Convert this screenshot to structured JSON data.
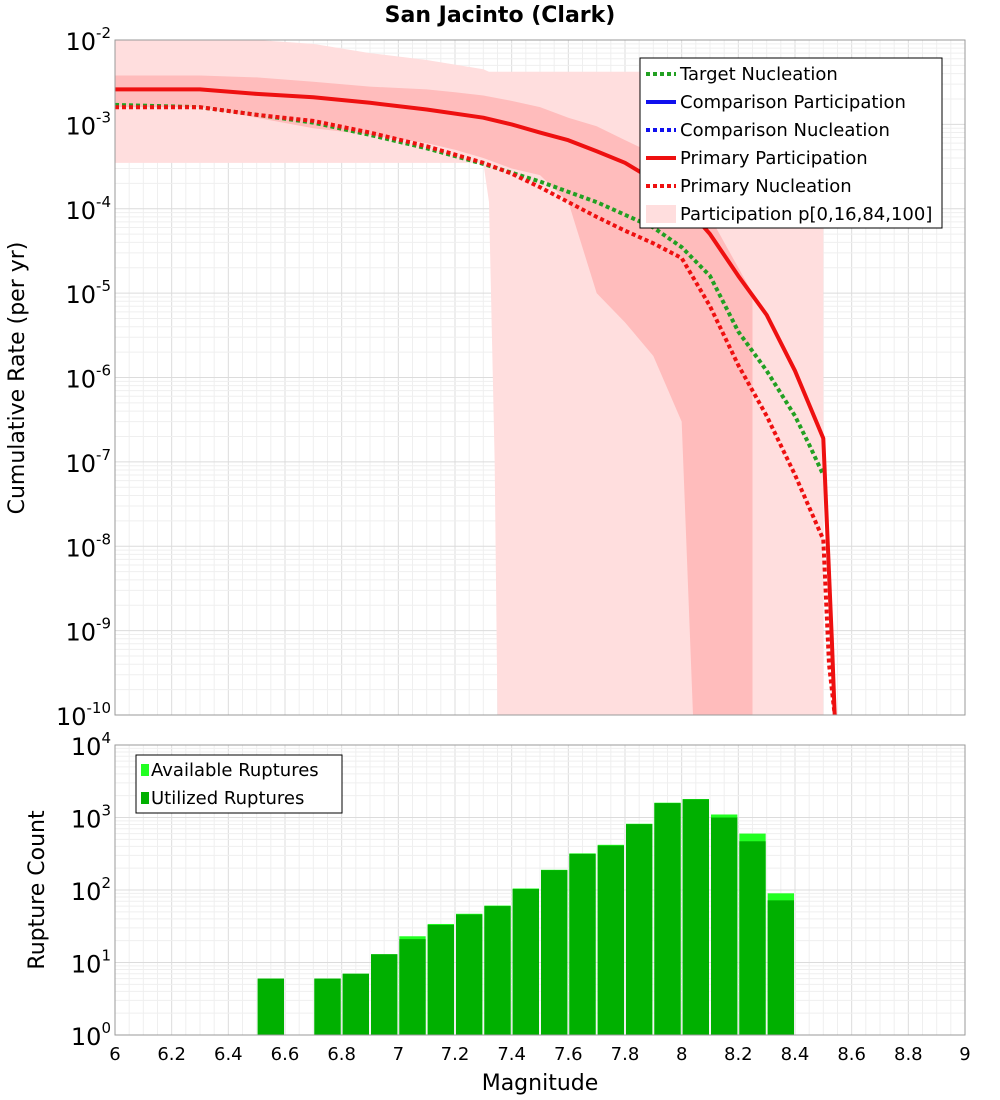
{
  "title": "San Jacinto (Clark)",
  "colors": {
    "target_green": "#22a022",
    "comparison_blue": "#1010ee",
    "primary_red": "#ee1010",
    "band_outer": "#ffdede",
    "band_inner": "#ffbcbc",
    "available_bars": "#22ff22",
    "utilized_bars": "#00b000",
    "grid": "#e6e6e6"
  },
  "chart_data": [
    {
      "type": "line",
      "ylabel": "Cumulative Rate (per yr)",
      "xlabel": "",
      "yscale": "log",
      "ylim": [
        1e-10,
        0.01
      ],
      "xlim": [
        6,
        9
      ],
      "yticks": [
        {
          "base": "10",
          "exp": "-2"
        },
        {
          "base": "10",
          "exp": "-3"
        },
        {
          "base": "10",
          "exp": "-4"
        },
        {
          "base": "10",
          "exp": "-5"
        },
        {
          "base": "10",
          "exp": "-6"
        },
        {
          "base": "10",
          "exp": "-7"
        },
        {
          "base": "10",
          "exp": "-8"
        },
        {
          "base": "10",
          "exp": "-9"
        },
        {
          "base": "10",
          "exp": "-10"
        }
      ],
      "legend": {
        "placement": "top-right",
        "entries": [
          {
            "label": "Target Nucleation",
            "style": "dotted",
            "color": "#22a022"
          },
          {
            "label": "Comparison Participation",
            "style": "solid",
            "color": "#1010ee"
          },
          {
            "label": "Comparison Nucleation",
            "style": "dotted",
            "color": "#1010ee"
          },
          {
            "label": "Primary Participation",
            "style": "solid",
            "color": "#ee1010"
          },
          {
            "label": "Primary Nucleation",
            "style": "dotted",
            "color": "#ee1010"
          },
          {
            "label": "Participation p[0,16,84,100]",
            "style": "band",
            "color": "#ffdede"
          }
        ]
      },
      "series": [
        {
          "name": "Target Nucleation",
          "style": "dotted",
          "color": "#22a022",
          "x": [
            6.0,
            6.3,
            6.5,
            6.7,
            6.9,
            7.1,
            7.3,
            7.5,
            7.7,
            7.9,
            8.0,
            8.1,
            8.2,
            8.3,
            8.4,
            8.45,
            8.5
          ],
          "y": [
            0.0017,
            0.0016,
            0.0013,
            0.00105,
            0.00075,
            0.00052,
            0.00034,
            0.00021,
            0.00012,
            6e-05,
            3.5e-05,
            1.6e-05,
            3.5e-06,
            1.2e-06,
            3.5e-07,
            1.6e-07,
            7e-08
          ]
        },
        {
          "name": "Primary Participation",
          "style": "solid",
          "color": "#ee1010",
          "x": [
            6.0,
            6.3,
            6.5,
            6.7,
            6.9,
            7.1,
            7.3,
            7.4,
            7.5,
            7.6,
            7.7,
            7.8,
            7.9,
            8.0,
            8.1,
            8.2,
            8.3,
            8.4,
            8.5,
            8.53,
            8.54
          ],
          "y": [
            0.0026,
            0.0026,
            0.0023,
            0.0021,
            0.0018,
            0.0015,
            0.0012,
            0.001,
            0.0008,
            0.00065,
            0.00048,
            0.00035,
            0.00022,
            0.00012,
            5e-05,
            1.6e-05,
            5.5e-06,
            1.2e-06,
            1.9e-07,
            8e-10,
            1e-10
          ]
        },
        {
          "name": "Primary Nucleation",
          "style": "dotted",
          "color": "#ee1010",
          "x": [
            6.0,
            6.3,
            6.5,
            6.7,
            6.9,
            7.1,
            7.3,
            7.4,
            7.5,
            7.6,
            7.7,
            7.8,
            7.9,
            8.0,
            8.1,
            8.2,
            8.3,
            8.4,
            8.5,
            8.52,
            8.54
          ],
          "y": [
            0.0016,
            0.0016,
            0.0013,
            0.0011,
            0.0008,
            0.00055,
            0.00035,
            0.00026,
            0.00018,
            0.00012,
            8e-05,
            5.5e-05,
            3.9e-05,
            2.6e-05,
            7e-06,
            1.4e-06,
            3.5e-07,
            7e-08,
            1.2e-08,
            4e-10,
            1e-10
          ]
        }
      ],
      "bands": [
        {
          "name": "p0-p100",
          "color": "#ffdede",
          "x": [
            6.0,
            6.5,
            6.7,
            6.9,
            7.1,
            7.3,
            7.32,
            7.34,
            7.35,
            7.4,
            7.6,
            7.8,
            8.0,
            8.04,
            8.1,
            8.2,
            8.3,
            8.4,
            8.48,
            8.49,
            8.5
          ],
          "upper": [
            0.01,
            0.01,
            0.009,
            0.007,
            0.0058,
            0.0045,
            0.0042,
            0.0042,
            0.0042,
            0.0042,
            0.0042,
            0.0042,
            0.0042,
            0.0042,
            0.0042,
            0.0042,
            0.0042,
            0.0042,
            0.0042,
            0.0042,
            0.0042
          ],
          "lower": [
            0.00035,
            0.00035,
            0.00035,
            0.00035,
            0.00035,
            0.00035,
            0.00012,
            1e-07,
            1e-10,
            1e-10,
            1e-10,
            1e-10,
            1e-10,
            1e-10,
            1e-10,
            1e-10,
            1e-10,
            1e-10,
            1e-10,
            1e-10,
            1e-10
          ]
        },
        {
          "name": "p16-p84",
          "color": "#ffbcbc",
          "x": [
            6.0,
            6.3,
            6.5,
            6.7,
            6.9,
            7.1,
            7.2,
            7.3,
            7.4,
            7.5,
            7.6,
            7.7,
            7.8,
            7.9,
            8.0,
            8.04,
            8.1,
            8.2,
            8.25
          ],
          "upper": [
            0.0038,
            0.0038,
            0.0036,
            0.0032,
            0.0028,
            0.0026,
            0.0024,
            0.0022,
            0.0019,
            0.0016,
            0.0012,
            0.00095,
            0.00065,
            0.00045,
            0.00028,
            0.0002,
            8e-05,
            2e-05,
            1e-05
          ],
          "lower": [
            0.0016,
            0.0016,
            0.0012,
            0.0009,
            0.00075,
            0.0006,
            0.0005,
            0.0004,
            0.0003,
            0.00025,
            0.00012,
            1e-05,
            4.5e-06,
            1.8e-06,
            3e-07,
            1e-10,
            1e-10,
            1e-10,
            1e-10
          ]
        }
      ]
    },
    {
      "type": "bar",
      "ylabel": "Rupture Count",
      "xlabel": "Magnitude",
      "yscale": "log",
      "ylim": [
        1,
        10000
      ],
      "xlim": [
        6,
        9
      ],
      "xticks": [
        "6",
        "6.2",
        "6.4",
        "6.6",
        "6.8",
        "7",
        "7.2",
        "7.4",
        "7.6",
        "7.8",
        "8",
        "8.2",
        "8.4",
        "8.6",
        "8.8",
        "9"
      ],
      "yticks": [
        {
          "base": "10",
          "exp": "4"
        },
        {
          "base": "10",
          "exp": "3"
        },
        {
          "base": "10",
          "exp": "2"
        },
        {
          "base": "10",
          "exp": "1"
        },
        {
          "base": "10",
          "exp": "0"
        }
      ],
      "legend": {
        "placement": "top-left",
        "entries": [
          {
            "label": "Available Ruptures",
            "color": "#22ff22"
          },
          {
            "label": "Utilized Ruptures",
            "color": "#00b000"
          }
        ]
      },
      "bar_width": 0.1,
      "x": [
        6.55,
        6.75,
        6.85,
        6.95,
        7.05,
        7.15,
        7.25,
        7.35,
        7.45,
        7.55,
        7.65,
        7.75,
        7.85,
        7.95,
        8.05,
        8.15,
        8.25,
        8.35
      ],
      "series": [
        {
          "name": "Available Ruptures",
          "values": [
            6,
            6,
            7,
            13,
            23,
            34,
            47,
            61,
            105,
            190,
            320,
            420,
            820,
            1600,
            1800,
            1100,
            600,
            90
          ]
        },
        {
          "name": "Utilized Ruptures",
          "values": [
            6,
            6,
            7,
            13,
            21,
            33,
            46,
            60,
            103,
            188,
            315,
            410,
            810,
            1580,
            1780,
            1000,
            470,
            72
          ]
        }
      ]
    }
  ]
}
